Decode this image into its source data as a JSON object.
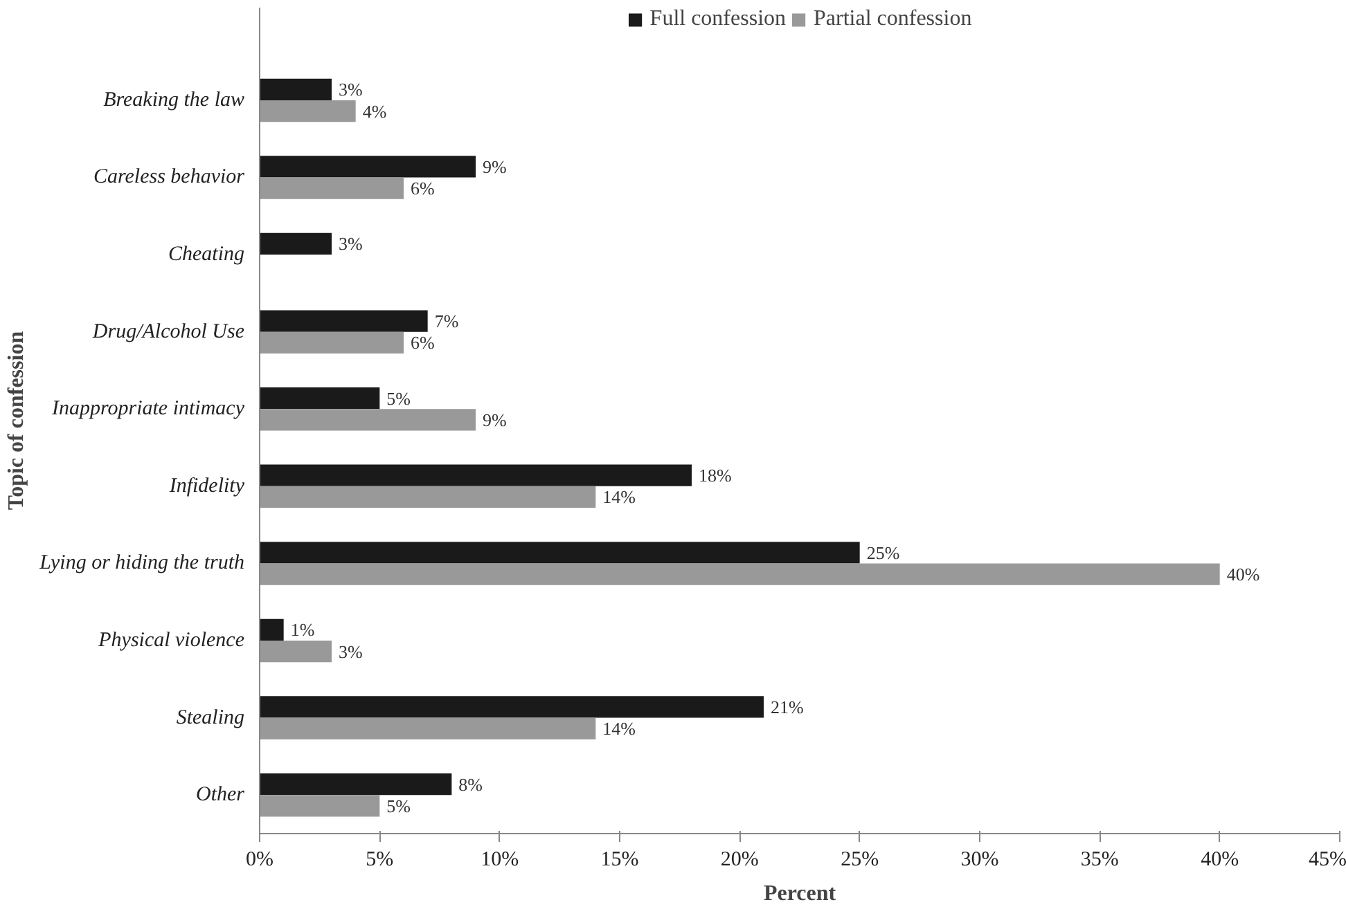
{
  "chart_data": {
    "type": "bar",
    "orientation": "horizontal",
    "xlabel": "Percent",
    "ylabel": "Topic of confession",
    "categories": [
      "Breaking the law",
      "Careless behavior",
      "Cheating",
      "Drug/Alcohol Use",
      "Inappropriate intimacy",
      "Infidelity",
      "Lying or hiding the truth",
      "Physical violence",
      "Stealing",
      "Other"
    ],
    "series": [
      {
        "name": "Full confession",
        "color": "#1a1a1a",
        "values": [
          3,
          9,
          3,
          7,
          5,
          18,
          25,
          1,
          21,
          8
        ],
        "value_labels": [
          "3%",
          "9%",
          "3%",
          "7%",
          "5%",
          "18%",
          "25%",
          "1%",
          "21%",
          "8%"
        ]
      },
      {
        "name": "Partial confession",
        "color": "#999999",
        "values": [
          4,
          6,
          null,
          6,
          9,
          14,
          40,
          3,
          14,
          5
        ],
        "value_labels": [
          "4%",
          "6%",
          null,
          "6%",
          "9%",
          "14%",
          "40%",
          "3%",
          "14%",
          "5%"
        ]
      }
    ],
    "xlim": [
      0,
      45
    ],
    "xticks": [
      {
        "value": 0,
        "label": "0%"
      },
      {
        "value": 5,
        "label": "5%"
      },
      {
        "value": 10,
        "label": "10%"
      },
      {
        "value": 15,
        "label": "15%"
      },
      {
        "value": 20,
        "label": "20%"
      },
      {
        "value": 25,
        "label": "25%"
      },
      {
        "value": 30,
        "label": "30%"
      },
      {
        "value": 35,
        "label": "35%"
      },
      {
        "value": 40,
        "label": "40%"
      },
      {
        "value": 45,
        "label": "45%"
      }
    ],
    "grid": false,
    "legend": "top"
  }
}
